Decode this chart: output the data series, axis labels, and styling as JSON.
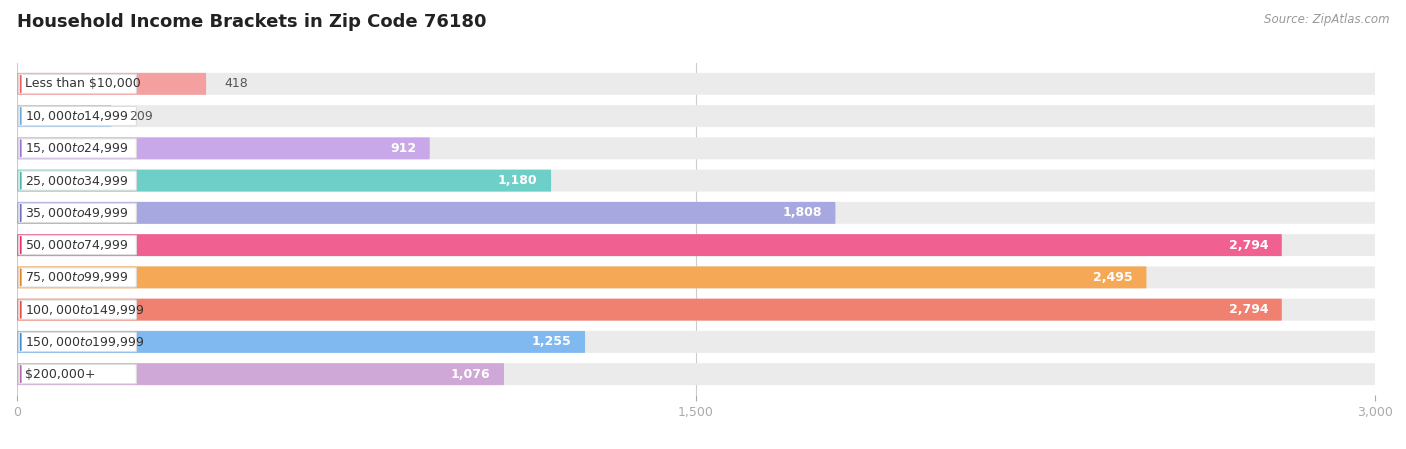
{
  "title": "Household Income Brackets in Zip Code 76180",
  "source": "Source: ZipAtlas.com",
  "categories": [
    "Less than $10,000",
    "$10,000 to $14,999",
    "$15,000 to $24,999",
    "$25,000 to $34,999",
    "$35,000 to $49,999",
    "$50,000 to $74,999",
    "$75,000 to $99,999",
    "$100,000 to $149,999",
    "$150,000 to $199,999",
    "$200,000+"
  ],
  "values": [
    418,
    209,
    912,
    1180,
    1808,
    2794,
    2495,
    2794,
    1255,
    1076
  ],
  "bar_colors": [
    "#F4A0A0",
    "#A8C8F0",
    "#C8A8E8",
    "#6DCFC8",
    "#A8A8E0",
    "#F06090",
    "#F5A855",
    "#F08070",
    "#80B8F0",
    "#D0A8D8"
  ],
  "dot_colors": [
    "#F06060",
    "#70A8E0",
    "#A070D0",
    "#40B8B0",
    "#7070C8",
    "#E83070",
    "#E88020",
    "#E05040",
    "#4090D8",
    "#B070B0"
  ],
  "background_color": "#ffffff",
  "bar_bg_color": "#ebebeb",
  "xlim": [
    0,
    3000
  ],
  "xticks": [
    0,
    1500,
    3000
  ],
  "title_fontsize": 13,
  "label_fontsize": 9,
  "value_fontsize": 9,
  "value_inside_threshold": 600
}
